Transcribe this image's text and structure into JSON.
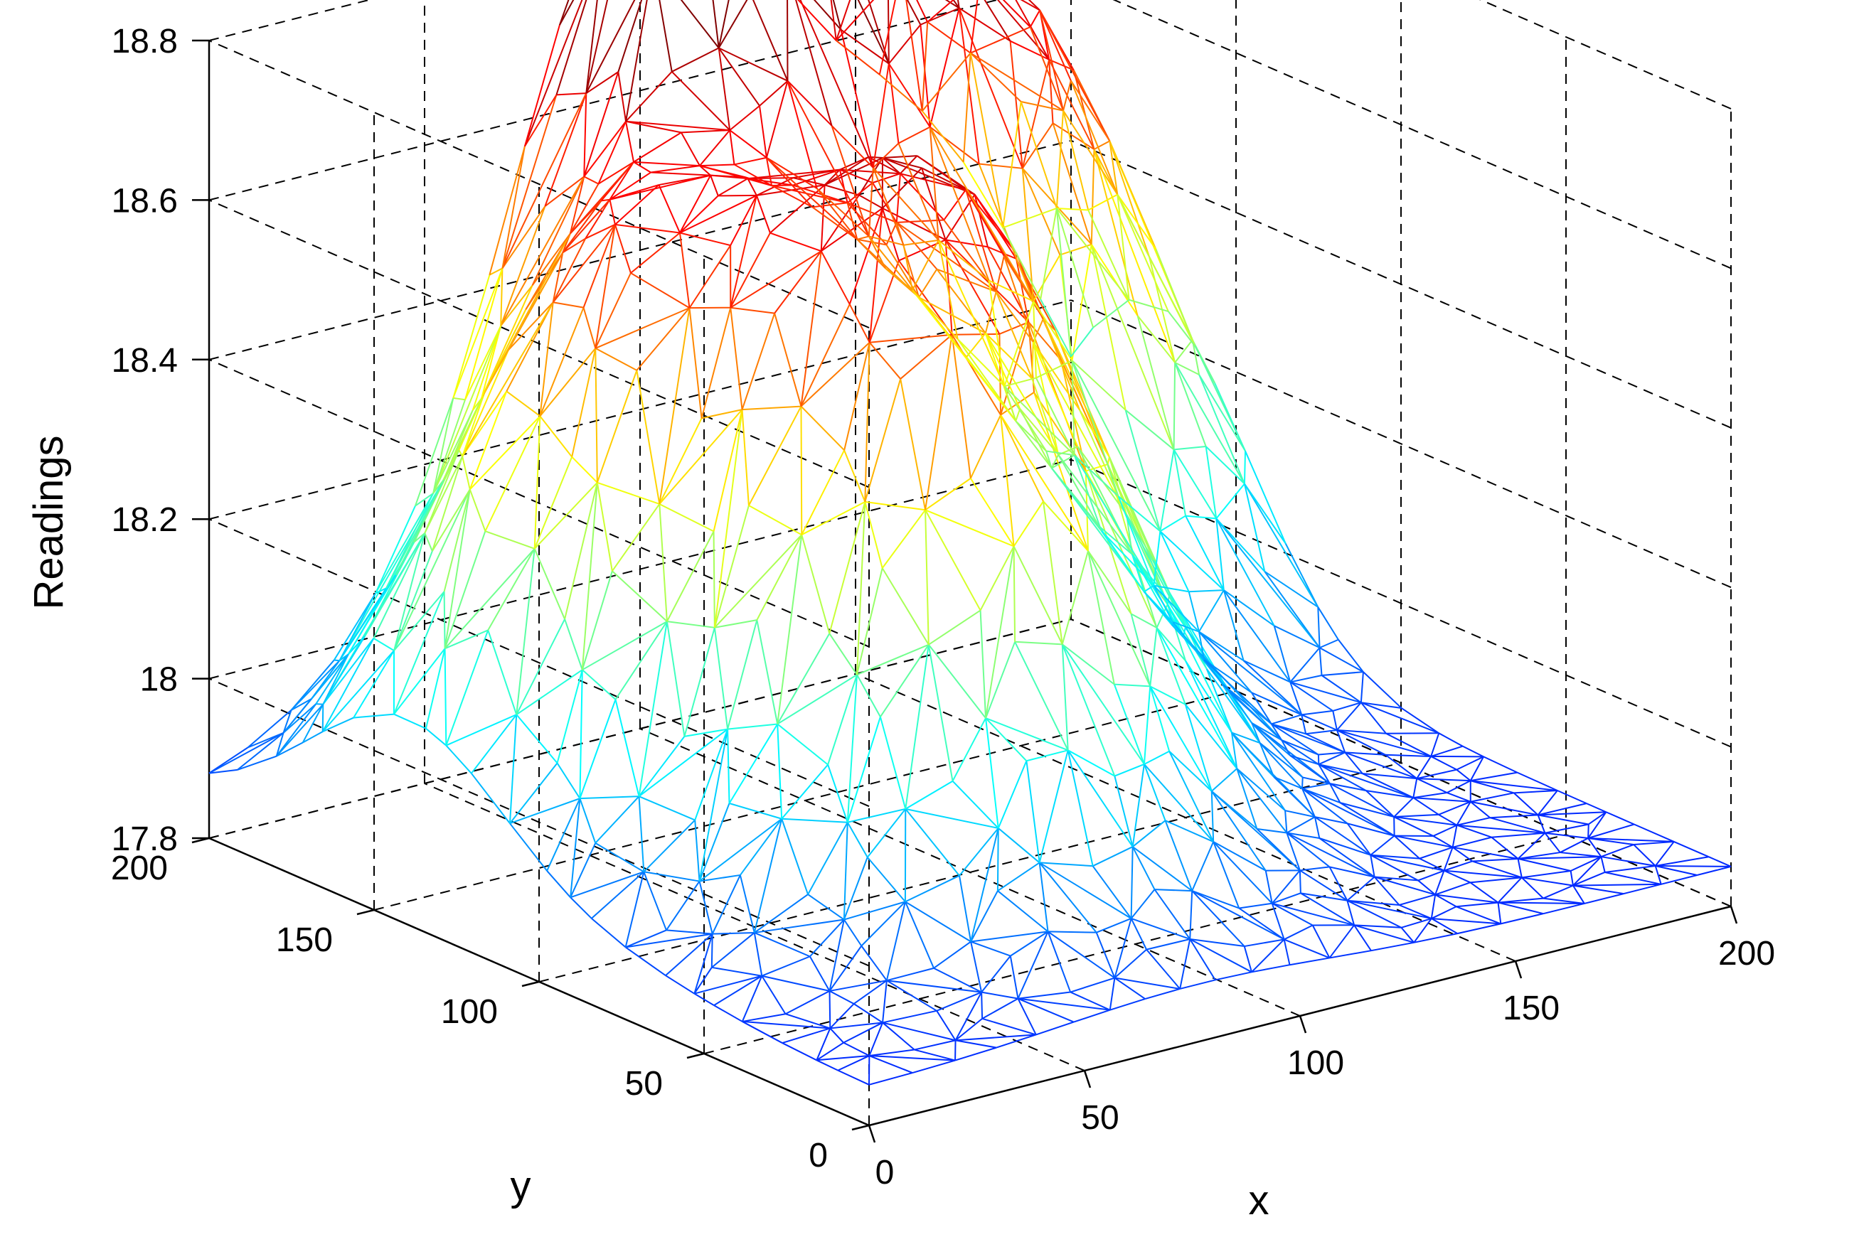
{
  "chart_data": {
    "type": "surface",
    "title": "",
    "xlabel": "x",
    "ylabel": "y",
    "zlabel": "Readings",
    "xlim": [
      0,
      200
    ],
    "ylim": [
      0,
      200
    ],
    "zlim": [
      17.8,
      18.8
    ],
    "x_ticks": [
      "0",
      "50",
      "100",
      "150",
      "200"
    ],
    "y_ticks": [
      "0",
      "50",
      "100",
      "150",
      "200"
    ],
    "z_ticks": [
      "17.8",
      "18",
      "18.2",
      "18.4",
      "18.6",
      "18.8"
    ],
    "grid": true,
    "colormap": "jet",
    "style": "triangulated wireframe mesh",
    "bumps": [
      {
        "x": 45,
        "y": 140,
        "peak": 18.48
      },
      {
        "x": 75,
        "y": 75,
        "peak": 18.34
      },
      {
        "x": 100,
        "y": 105,
        "peak": 18.34
      },
      {
        "x": 100,
        "y": 190,
        "peak": 18.88
      },
      {
        "x": 165,
        "y": 175,
        "peak": 18.62
      }
    ],
    "base_level": 17.85
  }
}
